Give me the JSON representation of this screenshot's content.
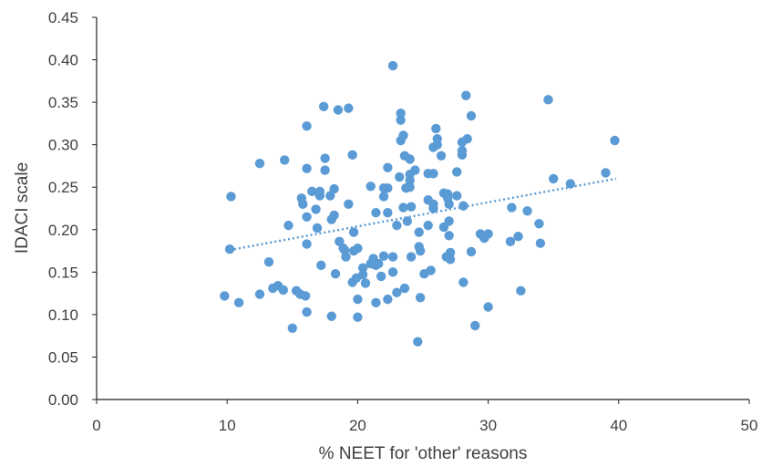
{
  "chart_data": {
    "type": "scatter",
    "xlabel": "% NEET for 'other' reasons",
    "ylabel": "IDACI scale",
    "xlim": [
      0,
      50
    ],
    "ylim": [
      0,
      0.45
    ],
    "xticks": [
      "0",
      "10",
      "20",
      "30",
      "40",
      "50"
    ],
    "yticks": [
      "0.00",
      "0.05",
      "0.10",
      "0.15",
      "0.20",
      "0.25",
      "0.30",
      "0.35",
      "0.40",
      "0.45"
    ],
    "grid": false,
    "legend": "none",
    "color": "#5b9bd5",
    "trendline": {
      "style": "dotted",
      "x": [
        10.2,
        39.8
      ],
      "y": [
        0.176,
        0.26
      ]
    },
    "points": [
      [
        10.3,
        0.239
      ],
      [
        10.2,
        0.177
      ],
      [
        9.8,
        0.122
      ],
      [
        10.9,
        0.114
      ],
      [
        12.5,
        0.278
      ],
      [
        12.5,
        0.124
      ],
      [
        13.2,
        0.162
      ],
      [
        13.5,
        0.131
      ],
      [
        13.9,
        0.134
      ],
      [
        14.4,
        0.282
      ],
      [
        14.3,
        0.129
      ],
      [
        14.7,
        0.205
      ],
      [
        15.0,
        0.084
      ],
      [
        15.3,
        0.128
      ],
      [
        15.6,
        0.124
      ],
      [
        15.7,
        0.237
      ],
      [
        15.8,
        0.23
      ],
      [
        16.0,
        0.122
      ],
      [
        16.1,
        0.322
      ],
      [
        16.1,
        0.272
      ],
      [
        16.1,
        0.215
      ],
      [
        16.1,
        0.183
      ],
      [
        16.1,
        0.103
      ],
      [
        16.5,
        0.245
      ],
      [
        16.8,
        0.224
      ],
      [
        16.9,
        0.202
      ],
      [
        17.1,
        0.245
      ],
      [
        17.1,
        0.24
      ],
      [
        17.2,
        0.158
      ],
      [
        17.4,
        0.345
      ],
      [
        17.5,
        0.284
      ],
      [
        17.5,
        0.27
      ],
      [
        17.9,
        0.24
      ],
      [
        18.0,
        0.212
      ],
      [
        18.0,
        0.098
      ],
      [
        18.2,
        0.217
      ],
      [
        18.2,
        0.248
      ],
      [
        18.3,
        0.148
      ],
      [
        18.5,
        0.341
      ],
      [
        18.6,
        0.186
      ],
      [
        18.9,
        0.178
      ],
      [
        19.0,
        0.176
      ],
      [
        19.1,
        0.168
      ],
      [
        19.3,
        0.343
      ],
      [
        19.3,
        0.23
      ],
      [
        19.6,
        0.288
      ],
      [
        19.6,
        0.138
      ],
      [
        19.7,
        0.197
      ],
      [
        19.7,
        0.175
      ],
      [
        19.9,
        0.143
      ],
      [
        20.0,
        0.178
      ],
      [
        20.0,
        0.118
      ],
      [
        20.0,
        0.097
      ],
      [
        20.4,
        0.155
      ],
      [
        20.4,
        0.147
      ],
      [
        20.6,
        0.137
      ],
      [
        21.0,
        0.251
      ],
      [
        21.0,
        0.16
      ],
      [
        21.2,
        0.166
      ],
      [
        21.3,
        0.159
      ],
      [
        21.4,
        0.22
      ],
      [
        21.4,
        0.158
      ],
      [
        21.4,
        0.114
      ],
      [
        21.6,
        0.16
      ],
      [
        21.8,
        0.145
      ],
      [
        22.0,
        0.249
      ],
      [
        22.0,
        0.239
      ],
      [
        22.0,
        0.169
      ],
      [
        22.3,
        0.273
      ],
      [
        22.3,
        0.249
      ],
      [
        22.3,
        0.22
      ],
      [
        22.3,
        0.118
      ],
      [
        22.7,
        0.393
      ],
      [
        22.7,
        0.15
      ],
      [
        22.7,
        0.168
      ],
      [
        23.0,
        0.205
      ],
      [
        23.0,
        0.126
      ],
      [
        23.2,
        0.262
      ],
      [
        23.3,
        0.337
      ],
      [
        23.3,
        0.329
      ],
      [
        23.3,
        0.305
      ],
      [
        23.5,
        0.311
      ],
      [
        23.5,
        0.226
      ],
      [
        23.6,
        0.131
      ],
      [
        23.6,
        0.287
      ],
      [
        23.7,
        0.249
      ],
      [
        23.8,
        0.21
      ],
      [
        24.0,
        0.283
      ],
      [
        24.0,
        0.265
      ],
      [
        24.0,
        0.258
      ],
      [
        24.0,
        0.25
      ],
      [
        24.1,
        0.227
      ],
      [
        24.1,
        0.168
      ],
      [
        24.4,
        0.27
      ],
      [
        24.6,
        0.068
      ],
      [
        24.7,
        0.197
      ],
      [
        24.7,
        0.18
      ],
      [
        24.8,
        0.175
      ],
      [
        24.8,
        0.12
      ],
      [
        25.1,
        0.148
      ],
      [
        25.4,
        0.235
      ],
      [
        25.4,
        0.266
      ],
      [
        25.4,
        0.205
      ],
      [
        25.6,
        0.152
      ],
      [
        25.8,
        0.266
      ],
      [
        25.8,
        0.23
      ],
      [
        25.8,
        0.225
      ],
      [
        25.8,
        0.297
      ],
      [
        26.0,
        0.319
      ],
      [
        26.1,
        0.3
      ],
      [
        26.1,
        0.307
      ],
      [
        26.4,
        0.287
      ],
      [
        26.6,
        0.243
      ],
      [
        26.6,
        0.203
      ],
      [
        26.8,
        0.168
      ],
      [
        26.9,
        0.242
      ],
      [
        26.9,
        0.237
      ],
      [
        27.0,
        0.23
      ],
      [
        27.0,
        0.21
      ],
      [
        27.0,
        0.193
      ],
      [
        27.1,
        0.173
      ],
      [
        27.1,
        0.165
      ],
      [
        27.6,
        0.268
      ],
      [
        27.6,
        0.24
      ],
      [
        28.0,
        0.303
      ],
      [
        28.0,
        0.293
      ],
      [
        28.0,
        0.288
      ],
      [
        28.1,
        0.228
      ],
      [
        28.1,
        0.138
      ],
      [
        28.3,
        0.358
      ],
      [
        28.4,
        0.307
      ],
      [
        28.7,
        0.334
      ],
      [
        28.7,
        0.174
      ],
      [
        29.0,
        0.087
      ],
      [
        29.4,
        0.195
      ],
      [
        29.7,
        0.19
      ],
      [
        30.0,
        0.195
      ],
      [
        30.0,
        0.109
      ],
      [
        31.7,
        0.186
      ],
      [
        31.8,
        0.226
      ],
      [
        32.3,
        0.192
      ],
      [
        32.5,
        0.128
      ],
      [
        33.0,
        0.222
      ],
      [
        33.9,
        0.207
      ],
      [
        34.0,
        0.184
      ],
      [
        34.6,
        0.353
      ],
      [
        35.0,
        0.26
      ],
      [
        36.3,
        0.254
      ],
      [
        39.0,
        0.267
      ],
      [
        39.7,
        0.305
      ]
    ]
  }
}
